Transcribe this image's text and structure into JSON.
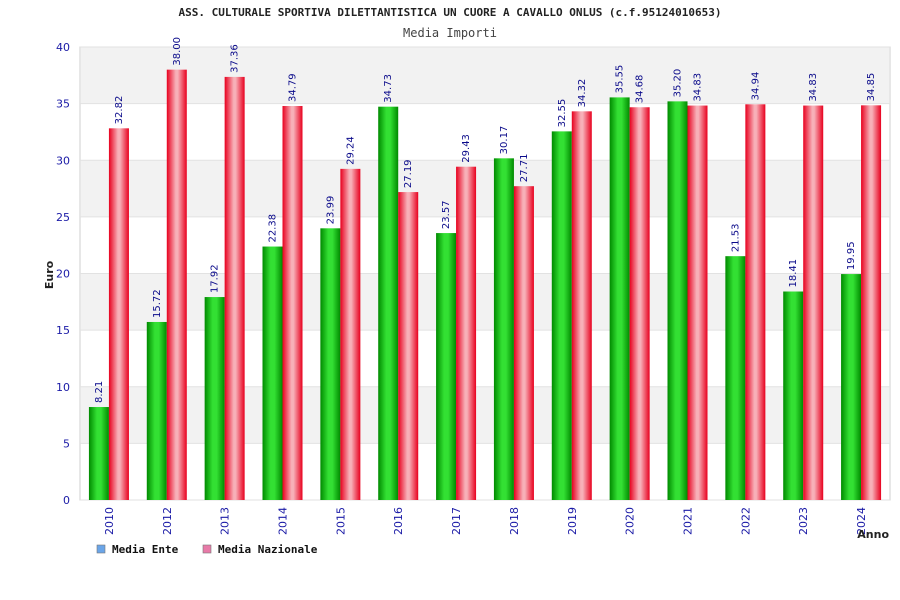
{
  "chart_data": {
    "type": "bar",
    "title": "ASS. CULTURALE SPORTIVA DILETTANTISTICA UN CUORE A CAVALLO ONLUS (c.f.95124010653)",
    "subtitle": "Media Importi",
    "xlabel": "Anno",
    "ylabel": "Euro",
    "ylim": [
      0,
      40
    ],
    "yticks": [
      "0",
      "5",
      "10",
      "15",
      "20",
      "25",
      "30",
      "35",
      "40"
    ],
    "categories": [
      "2010",
      "2012",
      "2013",
      "2014",
      "2015",
      "2016",
      "2017",
      "2018",
      "2019",
      "2020",
      "2021",
      "2022",
      "2023",
      "2024"
    ],
    "series": [
      {
        "name": "Media Ente",
        "values": [
          8.21,
          15.72,
          17.92,
          22.38,
          23.99,
          34.73,
          23.57,
          30.17,
          32.55,
          35.55,
          35.2,
          21.53,
          18.41,
          19.95
        ],
        "labels": [
          "8.21",
          "15.72",
          "17.92",
          "22.38",
          "23.99",
          "34.73",
          "23.57",
          "30.17",
          "32.55",
          "35.55",
          "35.20",
          "21.53",
          "18.41",
          "19.95"
        ],
        "color": "#00b000",
        "legend_color": "#6aa5e8"
      },
      {
        "name": "Media Nazionale",
        "values": [
          32.82,
          38.0,
          37.36,
          34.79,
          29.24,
          27.19,
          29.43,
          27.71,
          34.32,
          34.68,
          34.83,
          34.94,
          34.83,
          34.85
        ],
        "labels": [
          "32.82",
          "38.00",
          "37.36",
          "34.79",
          "29.24",
          "27.19",
          "29.43",
          "27.71",
          "34.32",
          "34.68",
          "34.83",
          "34.94",
          "34.83",
          "34.85"
        ],
        "color": "#e8102a",
        "legend_color": "#e87aa8"
      }
    ],
    "grid": true,
    "bands": true,
    "legend": "bottom-left"
  }
}
